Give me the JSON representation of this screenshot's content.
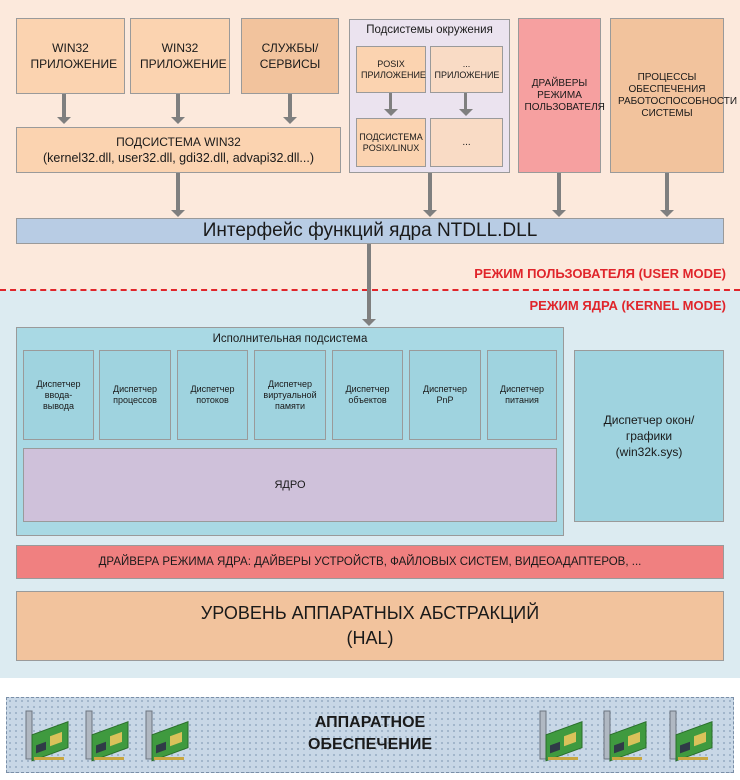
{
  "user_mode": {
    "label": "РЕЖИМ ПОЛЬЗОВАТЕЛЯ (USER MODE)",
    "win32_app_1": "WIN32 ПРИЛОЖЕНИЕ",
    "win32_app_2": "WIN32 ПРИЛОЖЕНИЕ",
    "services": "СЛУЖБЫ/ СЕРВИСЫ",
    "win32_subsystem": {
      "title": "ПОДСИСТЕМА WIN32",
      "dlls": "(kernel32.dll, user32.dll, gdi32.dll, advapi32.dll...)"
    },
    "env_subsystems": {
      "title": "Подсистемы окружения",
      "posix_app": "POSIX ПРИЛОЖЕНИЕ",
      "other_app": "... ПРИЛОЖЕНИЕ",
      "posix_subsystem": "ПОДСИСТЕМА POSIX/LINUX",
      "other_subsystem": "..."
    },
    "user_drivers": "ДРАЙВЕРЫ РЕЖИМА ПОЛЬЗОВАТЕЛЯ",
    "support_processes": "ПРОЦЕССЫ ОБЕСПЕЧЕНИЯ РАБОТОСПОСОБНОСТИ СИСТЕМЫ",
    "ntdll": "Интерфейс функций ядра NTDLL.DLL"
  },
  "kernel_mode": {
    "label": "РЕЖИМ ЯДРА (KERNEL MODE)",
    "executive": {
      "title": "Исполнительная подсистема",
      "managers": [
        "Диспетчер ввода-вывода",
        "Диспетчер процессов",
        "Диспетчер потоков",
        "Диспетчер виртуальной памяти",
        "Диспетчер объектов",
        "Диспетчер PnP",
        "Диспетчер питания"
      ],
      "kernel": "ЯДРО"
    },
    "window_manager": "Диспетчер окон/графики (win32k.sys)",
    "kernel_drivers": "ДРАЙВЕРА РЕЖИМА ЯДРА: ДАЙВЕРЫ УСТРОЙСТВ, ФАЙЛОВЫХ СИСТЕМ, ВИДЕОАДАПТЕРОВ, ...",
    "hal_line1": "УРОВЕНЬ АППАРАТНЫХ АБСТРАКЦИЙ",
    "hal_line2": "(HAL)"
  },
  "hardware": {
    "line1": "АППАРАТНОЕ",
    "line2": "ОБЕСПЕЧЕНИЕ"
  }
}
